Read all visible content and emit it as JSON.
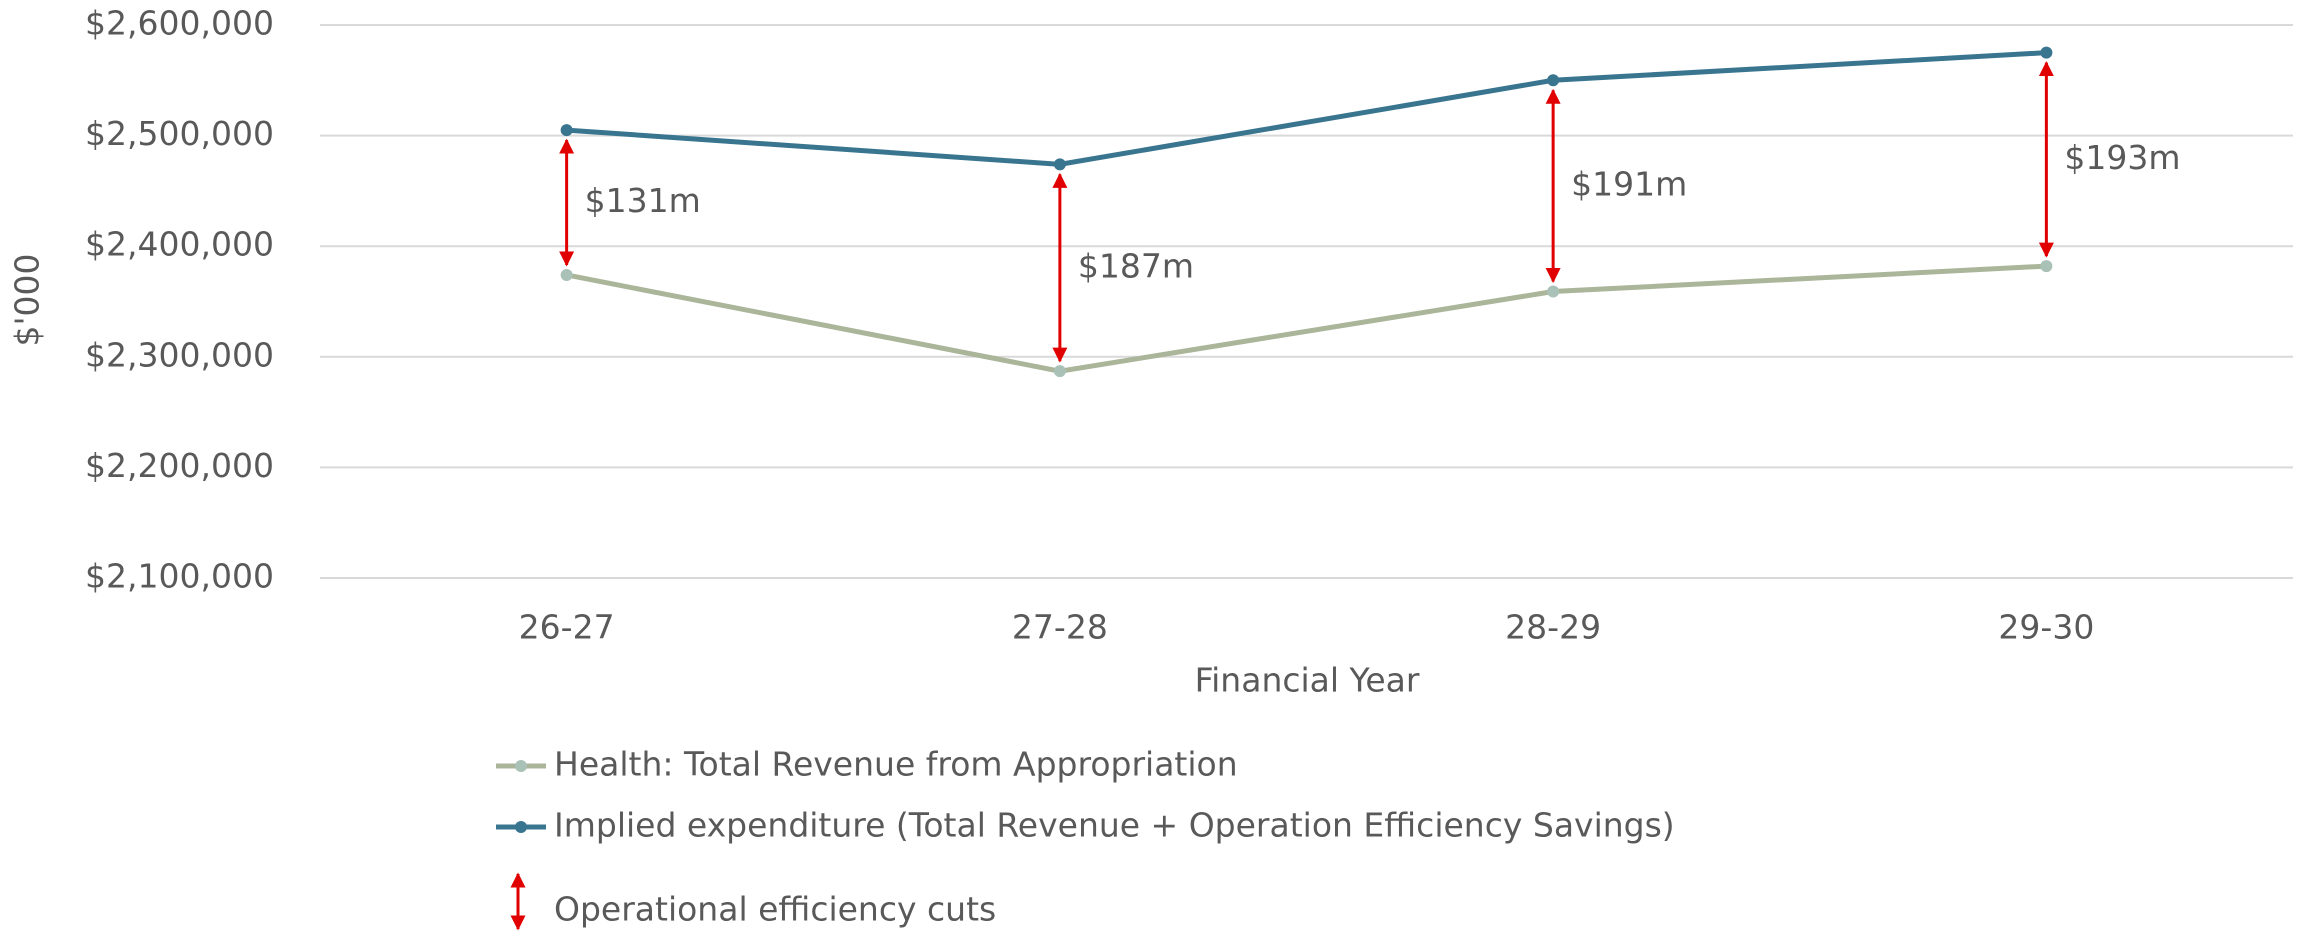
{
  "chart_data": {
    "type": "line",
    "x_label": "Financial Year",
    "y_label": "$'000",
    "categories": [
      "26-27",
      "27-28",
      "28-29",
      "29-30"
    ],
    "series": [
      {
        "name": "Health: Total Revenue from Appropriation",
        "color": "#aab59a",
        "marker_color": "#a9c1b6",
        "values": [
          2374000,
          2287000,
          2359000,
          2382000
        ]
      },
      {
        "name": "Implied expenditure (Total Revenue + Operation Efficiency Savings)",
        "color": "#3a7590",
        "marker_color": "#3a7590",
        "values": [
          2505000,
          2474000,
          2550000,
          2575000
        ]
      }
    ],
    "annotations": [
      "$131m",
      "$187m",
      "$191m",
      "$193m"
    ],
    "annotation_legend": "Operational efficiency cuts",
    "annotation_color": "#e00000",
    "ylim": [
      2100000,
      2600000
    ],
    "yticks": [
      {
        "value": 2100000,
        "label": "$2,100,000"
      },
      {
        "value": 2200000,
        "label": "$2,200,000"
      },
      {
        "value": 2300000,
        "label": "$2,300,000"
      },
      {
        "value": 2400000,
        "label": "$2,400,000"
      },
      {
        "value": 2500000,
        "label": "$2,500,000"
      },
      {
        "value": 2600000,
        "label": "$2,600,000"
      }
    ],
    "grid": true
  }
}
